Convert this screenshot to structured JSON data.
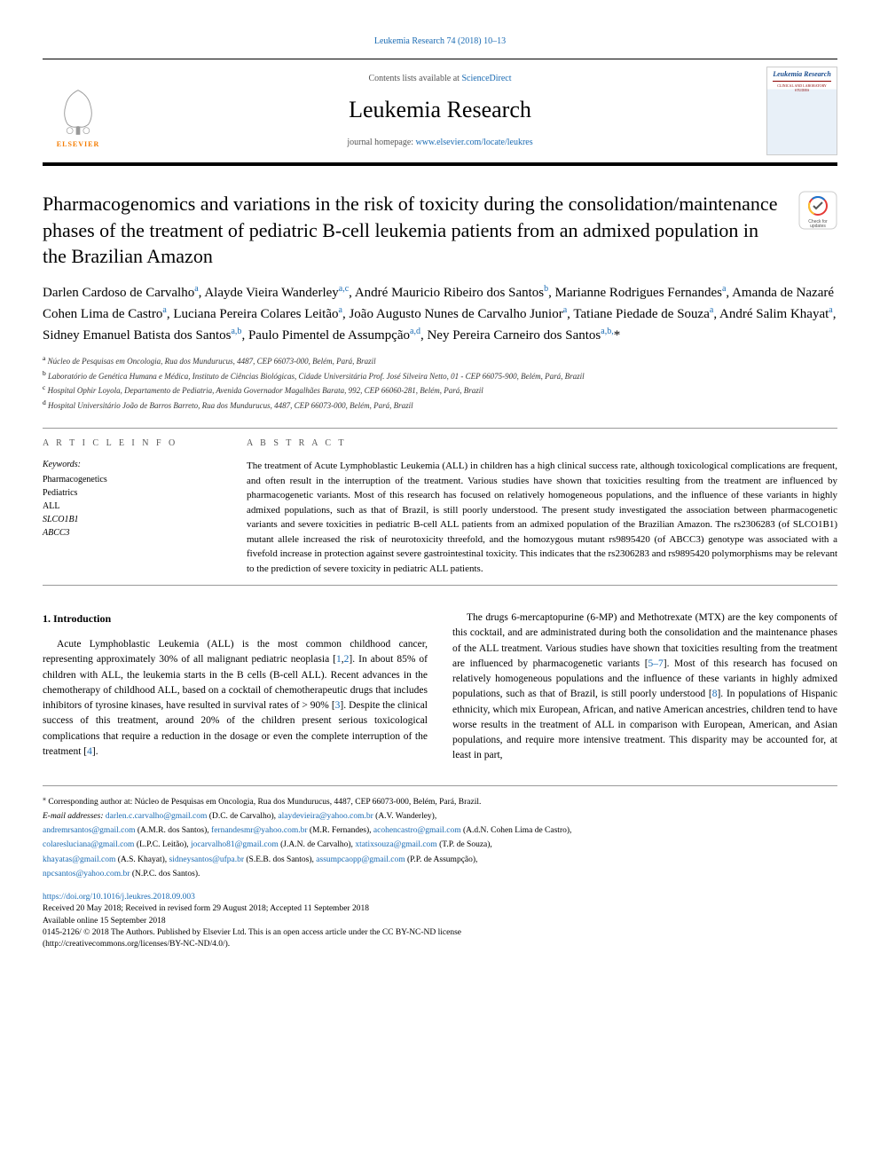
{
  "journal_link_text": "Leukemia Research 74 (2018) 10–13",
  "header": {
    "elsevier_label": "ELSEVIER",
    "contents_prefix": "Contents lists available at ",
    "contents_link": "ScienceDirect",
    "journal_title": "Leukemia Research",
    "homepage_prefix": "journal homepage: ",
    "homepage_link": "www.elsevier.com/locate/leukres",
    "cover_title": "Leukemia Research",
    "cover_sub": "CLINICAL AND LABORATORY STUDIES"
  },
  "article": {
    "title": "Pharmacogenomics and variations in the risk of toxicity during the consolidation/maintenance phases of the treatment of pediatric B-cell leukemia patients from an admixed population in the Brazilian Amazon",
    "crossmark_label": "Check for updates"
  },
  "authors_html": "Darlen Cardoso de Carvalho<sup>a</sup>, Alayde Vieira Wanderley<sup>a,c</sup>, André Mauricio Ribeiro dos Santos<sup>b</sup>, Marianne Rodrigues Fernandes<sup>a</sup>, Amanda de Nazaré Cohen Lima de Castro<sup>a</sup>, Luciana Pereira Colares Leitão<sup>a</sup>, João Augusto Nunes de Carvalho Junior<sup>a</sup>, Tatiane Piedade de Souza<sup>a</sup>, André Salim Khayat<sup>a</sup>, Sidney Emanuel Batista dos Santos<sup>a,b</sup>, Paulo Pimentel de Assumpção<sup>a,d</sup>, Ney Pereira Carneiro dos Santos<sup>a,b,</sup>*",
  "affiliations": [
    {
      "sup": "a",
      "text": "Núcleo de Pesquisas em Oncologia, Rua dos Mundurucus, 4487, CEP 66073-000, Belém, Pará, Brazil"
    },
    {
      "sup": "b",
      "text": "Laboratório de Genética Humana e Médica, Instituto de Ciências Biológicas, Cidade Universitária Prof. José Silveira Netto, 01 - CEP 66075-900, Belém, Pará, Brazil"
    },
    {
      "sup": "c",
      "text": "Hospital Ophir Loyola, Departamento de Pediatria, Avenida Governador Magalhães Barata, 992, CEP 66060-281, Belém, Pará, Brazil"
    },
    {
      "sup": "d",
      "text": "Hospital Universitário João de Barros Barreto, Rua dos Mundurucus, 4487, CEP 66073-000, Belém, Pará, Brazil"
    }
  ],
  "info": {
    "label": "A R T I C L E   I N F O",
    "keywords_label": "Keywords:",
    "keywords": [
      "Pharmacogenetics",
      "Pediatrics",
      "ALL",
      "SLCO1B1",
      "ABCC3"
    ]
  },
  "abstract": {
    "label": "A B S T R A C T",
    "text": "The treatment of Acute Lymphoblastic Leukemia (ALL) in children has a high clinical success rate, although toxicological complications are frequent, and often result in the interruption of the treatment. Various studies have shown that toxicities resulting from the treatment are influenced by pharmacogenetic variants. Most of this research has focused on relatively homogeneous populations, and the influence of these variants in highly admixed populations, such as that of Brazil, is still poorly understood. The present study investigated the association between pharmacogenetic variants and severe toxicities in pediatric B-cell ALL patients from an admixed population of the Brazilian Amazon. The rs2306283 (of SLCO1B1) mutant allele increased the risk of neurotoxicity threefold, and the homozygous mutant rs9895420 (of ABCC3) genotype was associated with a fivefold increase in protection against severe gastrointestinal toxicity. This indicates that the rs2306283 and rs9895420 polymorphisms may be relevant to the prediction of severe toxicity in pediatric ALL patients."
  },
  "body": {
    "heading": "1. Introduction",
    "p1_pre": "Acute Lymphoblastic Leukemia (ALL) is the most common childhood cancer, representing approximately 30% of all malignant pediatric neoplasia [",
    "p1_ref1": "1",
    "p1_mid1": ",",
    "p1_ref2": "2",
    "p1_mid2": "]. In about 85% of children with ALL, the leukemia starts in the B cells (B-cell ALL). Recent advances in the chemotherapy of childhood ALL, based on a cocktail of chemotherapeutic drugs that includes inhibitors of tyrosine kinases, have resulted in survival rates of > 90% [",
    "p1_ref3": "3",
    "p1_mid3": "]. Despite the clinical success of this treatment, around 20% of the children present serious toxicological complications that require a reduction in the dosage or even the complete interruption of the treatment [",
    "p1_ref4": "4",
    "p1_post": "].",
    "p2_pre": "The drugs 6-mercaptopurine (6-MP) and Methotrexate (MTX) are the key components of this cocktail, and are administrated during both the consolidation and the maintenance phases of the ALL treatment. Various studies have shown that toxicities resulting from the treatment are influenced by pharmacogenetic variants [",
    "p2_ref1": "5–7",
    "p2_mid1": "]. Most of this research has focused on relatively homogeneous populations and the influence of these variants in highly admixed populations, such as that of Brazil, is still poorly understood [",
    "p2_ref2": "8",
    "p2_post": "]. In populations of Hispanic ethnicity, which mix European, African, and native American ancestries, children tend to have worse results in the treatment of ALL in comparison with European, American, and Asian populations, and require more intensive treatment. This disparity may be accounted for, at least in part,"
  },
  "footer": {
    "corr_marker": "⁎",
    "corr_text": "Corresponding author at: Núcleo de Pesquisas em Oncologia, Rua dos Mundurucus, 4487, CEP 66073-000, Belém, Pará, Brazil.",
    "email_label": "E-mail addresses:",
    "emails": [
      {
        "addr": "darlen.c.carvalho@gmail.com",
        "who": " (D.C. de Carvalho), "
      },
      {
        "addr": "alaydevieira@yahoo.com.br",
        "who": " (A.V. Wanderley),"
      }
    ],
    "emails2": [
      {
        "addr": "andremrsantos@gmail.com",
        "who": " (A.M.R. dos Santos), "
      },
      {
        "addr": "fernandesmr@yahoo.com.br",
        "who": " (M.R. Fernandes), "
      },
      {
        "addr": "acohencastro@gmail.com",
        "who": " (A.d.N. Cohen Lima de Castro),"
      }
    ],
    "emails3": [
      {
        "addr": "colaresluciana@gmail.com",
        "who": " (L.P.C. Leitão), "
      },
      {
        "addr": "jocarvalho81@gmail.com",
        "who": " (J.A.N. de Carvalho), "
      },
      {
        "addr": "xtatixsouza@gmail.com",
        "who": " (T.P. de Souza),"
      }
    ],
    "emails4": [
      {
        "addr": "khayatas@gmail.com",
        "who": " (A.S. Khayat), "
      },
      {
        "addr": "sidneysantos@ufpa.br",
        "who": " (S.E.B. dos Santos), "
      },
      {
        "addr": "assumpcaopp@gmail.com",
        "who": " (P.P. de Assumpção),"
      }
    ],
    "emails5": [
      {
        "addr": "npcsantos@yahoo.com.br",
        "who": " (N.P.C. dos Santos)."
      }
    ],
    "doi": "https://doi.org/10.1016/j.leukres.2018.09.003",
    "received": "Received 20 May 2018; Received in revised form 29 August 2018; Accepted 11 September 2018",
    "available": "Available online 15 September 2018",
    "copyright1": "0145-2126/ © 2018 The Authors. Published by Elsevier Ltd. This is an open access article under the CC BY-NC-ND license",
    "copyright2": "(http://creativecommons.org/licenses/BY-NC-ND/4.0/)."
  },
  "colors": {
    "link": "#1a6bb3",
    "elsevier_orange": "#f57c00",
    "cover_blue": "#1a4d8f",
    "cover_red": "#8b0000",
    "divider": "#999999"
  }
}
